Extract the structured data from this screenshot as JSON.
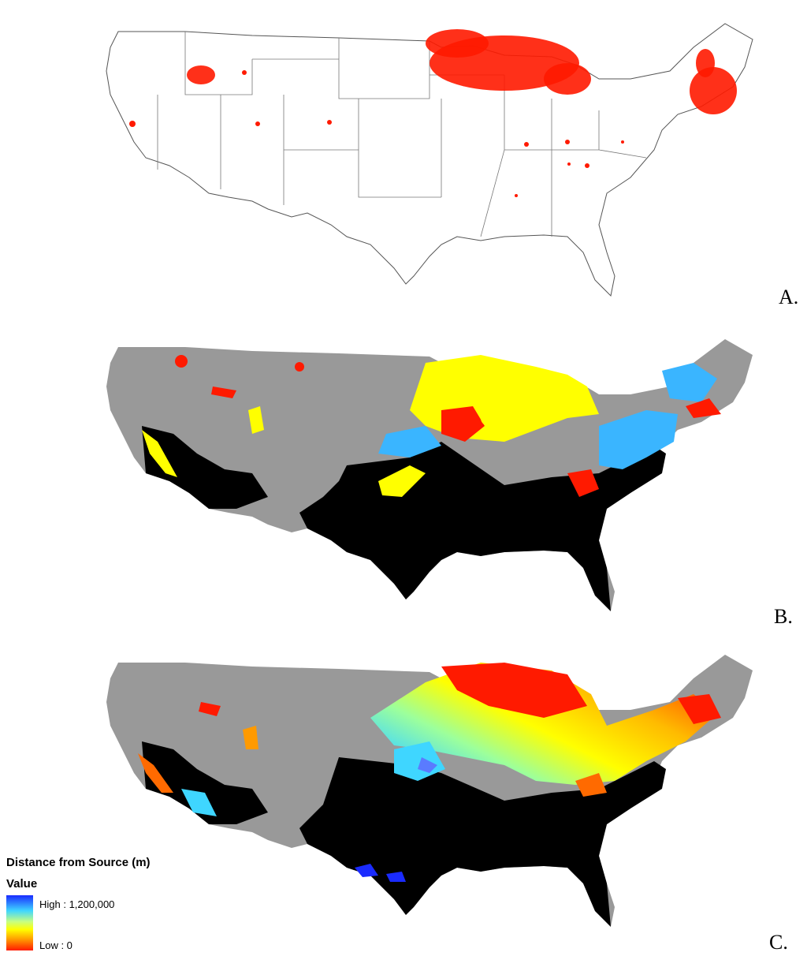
{
  "panels": [
    {
      "letter": "A.",
      "description_colors": {
        "points": "#ff0000",
        "land": "#ffffff",
        "borders": "#555555"
      }
    },
    {
      "letter": "B.",
      "description_colors": {
        "base": "#999999",
        "excluded": "#000000",
        "red": "#ff1a00",
        "yellow": "#ffff00",
        "blue": "#3ab5ff"
      }
    },
    {
      "letter": "C.",
      "description_colors": {
        "base": "#999999",
        "excluded": "#000000"
      }
    }
  ],
  "legend": {
    "title": "Distance from Source (m)",
    "subtitle": "Value",
    "high_label": "High : 1,200,000",
    "low_label": "Low : 0",
    "ramp_colors": [
      "#1a2bff",
      "#3fd6ff",
      "#c8ff80",
      "#ffff00",
      "#ff9a00",
      "#ff1a00"
    ]
  }
}
